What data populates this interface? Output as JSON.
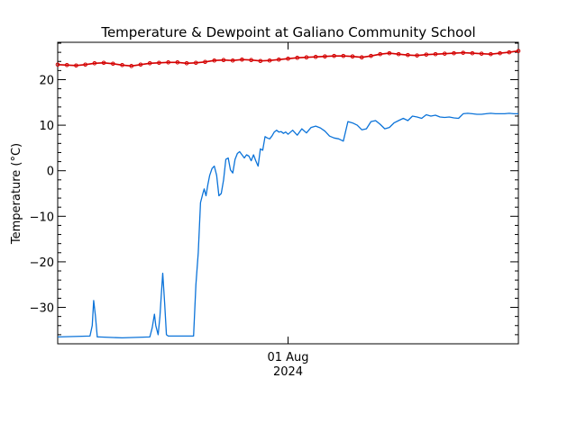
{
  "chart_data": {
    "type": "line",
    "title": "Temperature & Dewpoint at Galiano Community School",
    "ylabel": "Temperature (°C)",
    "xlabel": "",
    "x_tick_labels": [
      {
        "label": "01 Aug",
        "sublabel": "2024",
        "t": 0.5
      }
    ],
    "ylim": [
      -38,
      28.2
    ],
    "yticks": [
      20,
      10,
      0,
      -10,
      -20,
      -30
    ],
    "grid": false,
    "colors": {
      "temperature": "#d40000",
      "dewpoint": "#0b73d9"
    },
    "series": [
      {
        "key": "temperature",
        "x": [
          0,
          0.02,
          0.04,
          0.06,
          0.08,
          0.1,
          0.12,
          0.14,
          0.16,
          0.18,
          0.2,
          0.22,
          0.24,
          0.26,
          0.28,
          0.3,
          0.32,
          0.34,
          0.36,
          0.38,
          0.4,
          0.42,
          0.44,
          0.46,
          0.48,
          0.5,
          0.52,
          0.54,
          0.56,
          0.58,
          0.6,
          0.62,
          0.64,
          0.66,
          0.68,
          0.7,
          0.72,
          0.74,
          0.76,
          0.78,
          0.8,
          0.82,
          0.84,
          0.86,
          0.88,
          0.9,
          0.92,
          0.94,
          0.96,
          0.98,
          1.0
        ],
        "values": [
          23.3,
          23.2,
          23.1,
          23.3,
          23.6,
          23.7,
          23.5,
          23.2,
          23.0,
          23.3,
          23.6,
          23.7,
          23.8,
          23.8,
          23.6,
          23.7,
          23.9,
          24.2,
          24.3,
          24.2,
          24.4,
          24.3,
          24.1,
          24.2,
          24.4,
          24.6,
          24.8,
          24.9,
          25.0,
          25.1,
          25.2,
          25.2,
          25.1,
          24.9,
          25.2,
          25.6,
          25.8,
          25.6,
          25.4,
          25.3,
          25.5,
          25.6,
          25.7,
          25.8,
          25.9,
          25.8,
          25.7,
          25.6,
          25.8,
          26.0,
          26.3
        ]
      },
      {
        "key": "dewpoint",
        "x": [
          0,
          0.07,
          0.075,
          0.078,
          0.082,
          0.086,
          0.09,
          0.14,
          0.2,
          0.205,
          0.21,
          0.213,
          0.218,
          0.222,
          0.225,
          0.228,
          0.232,
          0.236,
          0.24,
          0.26,
          0.295,
          0.3,
          0.305,
          0.31,
          0.315,
          0.318,
          0.322,
          0.326,
          0.33,
          0.335,
          0.34,
          0.345,
          0.35,
          0.355,
          0.36,
          0.365,
          0.37,
          0.375,
          0.38,
          0.385,
          0.39,
          0.395,
          0.4,
          0.405,
          0.41,
          0.415,
          0.42,
          0.425,
          0.43,
          0.435,
          0.44,
          0.445,
          0.45,
          0.455,
          0.46,
          0.465,
          0.47,
          0.475,
          0.48,
          0.485,
          0.49,
          0.495,
          0.5,
          0.51,
          0.52,
          0.53,
          0.54,
          0.55,
          0.56,
          0.57,
          0.58,
          0.59,
          0.6,
          0.61,
          0.62,
          0.63,
          0.64,
          0.65,
          0.66,
          0.67,
          0.68,
          0.69,
          0.7,
          0.71,
          0.72,
          0.73,
          0.74,
          0.75,
          0.76,
          0.77,
          0.78,
          0.79,
          0.8,
          0.81,
          0.82,
          0.83,
          0.84,
          0.85,
          0.86,
          0.87,
          0.88,
          0.89,
          0.9,
          0.91,
          0.92,
          0.93,
          0.94,
          0.95,
          0.96,
          0.97,
          0.98,
          0.99,
          1.0
        ],
        "values": [
          -36.5,
          -36.3,
          -34.0,
          -28.5,
          -32.0,
          -36.5,
          -36.5,
          -36.7,
          -36.5,
          -34.5,
          -31.5,
          -34.0,
          -36.0,
          -32.0,
          -27.0,
          -22.5,
          -29.0,
          -36.0,
          -36.3,
          -36.3,
          -36.3,
          -25.0,
          -18.0,
          -7.0,
          -5.0,
          -4.0,
          -5.5,
          -3.0,
          -1.0,
          0.5,
          1.0,
          -1.0,
          -5.5,
          -5.0,
          -2.0,
          2.5,
          2.8,
          0.2,
          -0.5,
          2.5,
          3.8,
          4.2,
          3.5,
          2.8,
          3.5,
          3.2,
          2.2,
          3.5,
          2.2,
          1.0,
          4.8,
          4.5,
          7.5,
          7.2,
          7.0,
          7.6,
          8.5,
          8.9,
          8.5,
          8.6,
          8.2,
          8.5,
          8.0,
          8.9,
          7.8,
          9.2,
          8.3,
          9.5,
          9.8,
          9.4,
          8.7,
          7.6,
          7.2,
          7.0,
          6.5,
          10.8,
          10.5,
          10.0,
          9.0,
          9.2,
          10.8,
          11.0,
          10.2,
          9.2,
          9.5,
          10.5,
          11.0,
          11.5,
          11.0,
          12.0,
          11.8,
          11.5,
          12.3,
          12.0,
          12.2,
          11.8,
          11.7,
          11.8,
          11.6,
          11.5,
          12.5,
          12.6,
          12.5,
          12.4,
          12.4,
          12.5,
          12.6,
          12.5,
          12.5,
          12.5,
          12.6,
          12.5,
          12.5
        ]
      }
    ]
  }
}
